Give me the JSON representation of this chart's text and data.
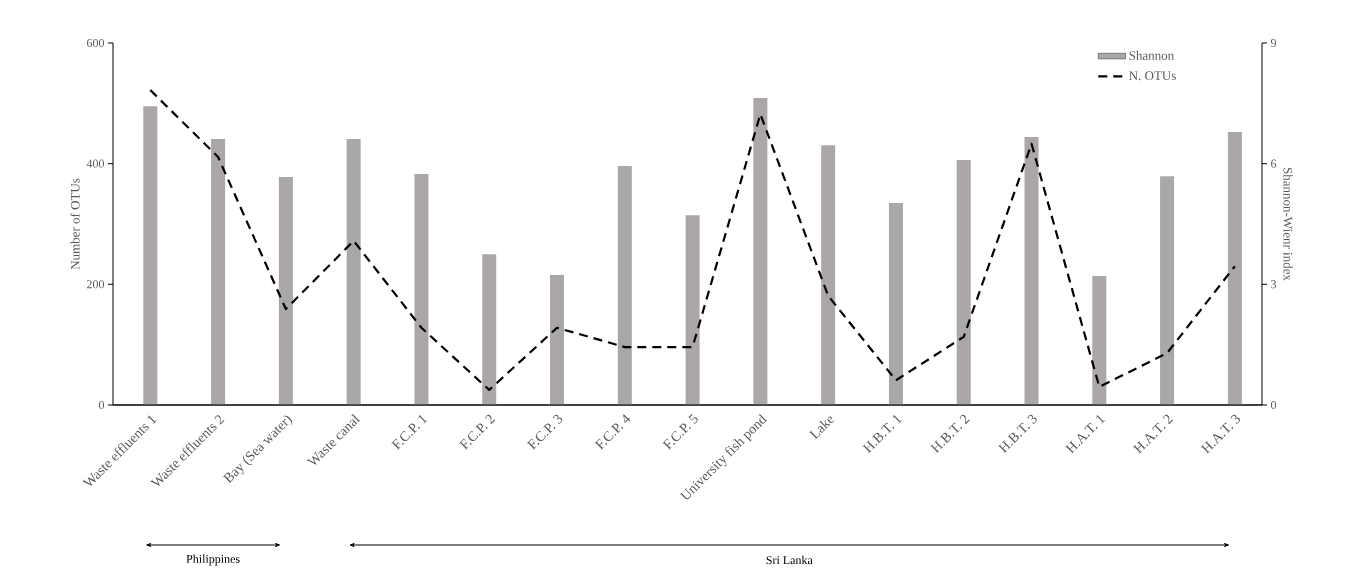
{
  "chart_data": {
    "type": "bar",
    "categories": [
      "Waste effluents 1",
      "Waste effluents 2",
      "Bay (Sea water)",
      "Waste canal",
      "F.C.P. 1",
      "F.C.P. 2",
      "F.C.P. 3",
      "F.C.P. 4",
      "F.C.P. 5",
      "University fish pond",
      "Lake",
      "H.B.T. 1",
      "H.B.T. 2",
      "H.B.T. 3",
      "H.A.T. 1",
      "H.A.T. 2",
      "H.A.T. 3"
    ],
    "series": [
      {
        "name": "Shannon",
        "axis": "y2",
        "color": "#aba7a6",
        "values": [
          7.43,
          6.61,
          5.67,
          6.61,
          5.74,
          3.75,
          3.23,
          5.94,
          4.72,
          7.63,
          6.46,
          5.02,
          6.09,
          6.66,
          3.21,
          5.69,
          6.79
        ]
      },
      {
        "name": "N. OTUs",
        "type": "line",
        "color": "#000000",
        "line_style": "dashed",
        "values": [
          522,
          411,
          159,
          272,
          128,
          25,
          128,
          96,
          96,
          482,
          181,
          41,
          113,
          433,
          30,
          86,
          230
        ]
      }
    ],
    "ylabel": "Number of OTUs",
    "y2label": "Shannon-Wienr index",
    "ylim": [
      0,
      600
    ],
    "yticks": [
      0,
      200,
      400,
      600
    ],
    "y2lim": [
      0,
      9
    ],
    "y2ticks": [
      0,
      3,
      6,
      9
    ],
    "legend": "top right",
    "grid": false,
    "marker": "none",
    "annotations": [
      "Philippines",
      "Sri Lanka"
    ]
  }
}
